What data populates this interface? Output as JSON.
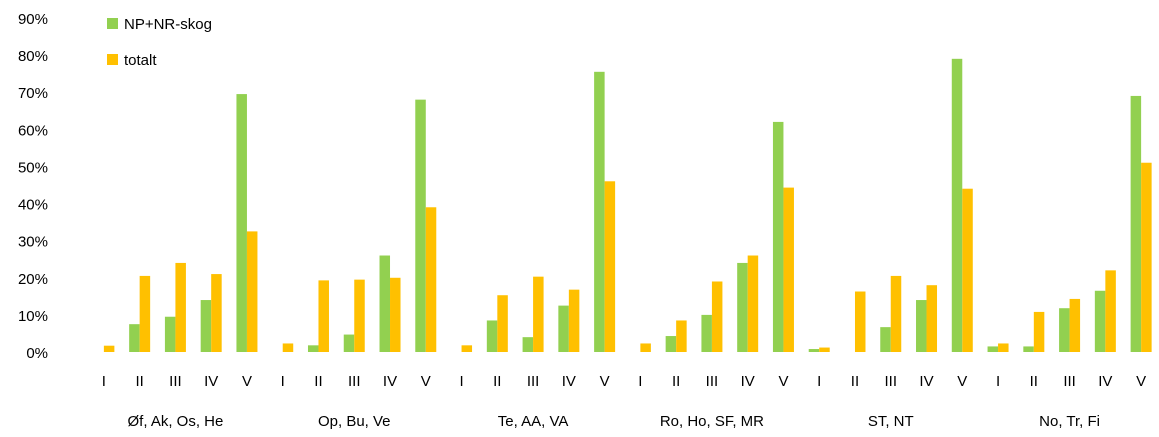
{
  "chart_data": {
    "type": "bar",
    "ylim": [
      0,
      90
    ],
    "yticks": [
      "0%",
      "10%",
      "20%",
      "30%",
      "40%",
      "50%",
      "60%",
      "70%",
      "80%",
      "90%"
    ],
    "grid": false,
    "legend_position": "top-left",
    "groups": [
      "Øf, Ak, Os, He",
      "Op, Bu, Ve",
      "Te, AA, VA",
      "Ro, Ho, SF, MR",
      "ST, NT",
      "No, Tr, Fi"
    ],
    "categories": [
      "I",
      "II",
      "III",
      "IV",
      "V"
    ],
    "series": [
      {
        "name": "NP+NR-skog",
        "color": "#92D050",
        "values": [
          [
            0,
            7.5,
            9.5,
            14,
            69.5
          ],
          [
            0,
            1.8,
            4.7,
            26,
            68
          ],
          [
            0,
            8.5,
            4,
            12.5,
            75.5
          ],
          [
            0,
            4.3,
            10,
            24,
            62
          ],
          [
            0.8,
            0,
            6.7,
            14,
            79
          ],
          [
            1.5,
            1.5,
            11.8,
            16.5,
            69
          ]
        ]
      },
      {
        "name": "totalt",
        "color": "#FFC000",
        "values": [
          [
            1.7,
            20.5,
            24,
            21,
            32.5
          ],
          [
            2.3,
            19.3,
            19.5,
            20,
            39
          ],
          [
            1.8,
            15.3,
            20.3,
            16.8,
            46
          ],
          [
            2.3,
            8.5,
            19,
            26,
            44.3
          ],
          [
            1.2,
            16.3,
            20.5,
            18,
            44
          ],
          [
            2.3,
            10.8,
            14.3,
            22,
            51
          ]
        ]
      }
    ]
  }
}
